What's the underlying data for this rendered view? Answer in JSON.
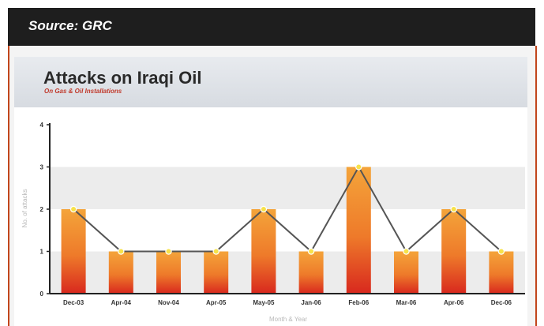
{
  "header": {
    "source": "Source: GRC"
  },
  "chart_data": {
    "type": "bar",
    "title": "Attacks on Iraqi Oil",
    "subtitle": "On Gas & Oil Installations",
    "xlabel": "Month & Year",
    "ylabel": "No. of attacks",
    "categories": [
      "Dec-03",
      "Apr-04",
      "Nov-04",
      "Apr-05",
      "May-05",
      "Jan-06",
      "Feb-06",
      "Mar-06",
      "Apr-06",
      "Dec-06"
    ],
    "values": [
      2,
      1,
      1,
      1,
      2,
      1,
      3,
      1,
      2,
      1
    ],
    "overlay": "line",
    "yticks": [
      0,
      1,
      2,
      3,
      4
    ],
    "ylim": [
      0,
      4
    ],
    "grid": "alternating horizontal bands",
    "colors": {
      "bar_top": "#f4a43a",
      "bar_bottom": "#d8281e",
      "line": "#555555",
      "marker": "#f7e24a",
      "band": "#ececec"
    }
  }
}
